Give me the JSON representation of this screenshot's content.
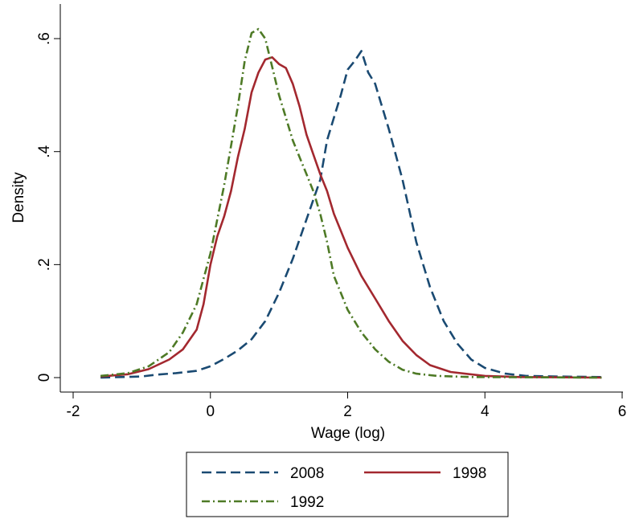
{
  "chart_data": {
    "type": "line",
    "xlabel": "Wage (log)",
    "ylabel": "Density",
    "xlim": [
      -2,
      6
    ],
    "ylim": [
      0,
      0.62
    ],
    "x_ticks": [
      {
        "value": -2,
        "label": "-2"
      },
      {
        "value": 0,
        "label": "0"
      },
      {
        "value": 2,
        "label": "2"
      },
      {
        "value": 4,
        "label": "4"
      },
      {
        "value": 6,
        "label": "6"
      }
    ],
    "y_ticks": [
      {
        "value": 0,
        "label": "0"
      },
      {
        "value": 0.2,
        "label": ".2"
      },
      {
        "value": 0.4,
        "label": ".4"
      },
      {
        "value": 0.6,
        "label": ".6"
      }
    ],
    "grid": false,
    "legend_position": "bottom",
    "series": [
      {
        "name": "2008",
        "color": "#1a4a72",
        "dash": "dashed",
        "points": [
          [
            -1.6,
            0.0
          ],
          [
            -1.3,
            0.001
          ],
          [
            -1.0,
            0.002
          ],
          [
            -0.8,
            0.005
          ],
          [
            -0.5,
            0.008
          ],
          [
            -0.2,
            0.012
          ],
          [
            0.0,
            0.02
          ],
          [
            0.2,
            0.033
          ],
          [
            0.4,
            0.048
          ],
          [
            0.6,
            0.068
          ],
          [
            0.8,
            0.1
          ],
          [
            1.0,
            0.15
          ],
          [
            1.2,
            0.21
          ],
          [
            1.4,
            0.28
          ],
          [
            1.6,
            0.35
          ],
          [
            1.7,
            0.42
          ],
          [
            1.8,
            0.46
          ],
          [
            1.9,
            0.5
          ],
          [
            2.0,
            0.545
          ],
          [
            2.1,
            0.56
          ],
          [
            2.2,
            0.578
          ],
          [
            2.3,
            0.54
          ],
          [
            2.4,
            0.52
          ],
          [
            2.5,
            0.48
          ],
          [
            2.6,
            0.44
          ],
          [
            2.8,
            0.35
          ],
          [
            3.0,
            0.24
          ],
          [
            3.2,
            0.16
          ],
          [
            3.4,
            0.1
          ],
          [
            3.6,
            0.06
          ],
          [
            3.8,
            0.032
          ],
          [
            4.0,
            0.017
          ],
          [
            4.3,
            0.007
          ],
          [
            4.6,
            0.003
          ],
          [
            5.0,
            0.002
          ],
          [
            5.7,
            0.001
          ]
        ]
      },
      {
        "name": "1998",
        "color": "#a3282f",
        "dash": "solid",
        "points": [
          [
            -1.6,
            0.002
          ],
          [
            -1.2,
            0.006
          ],
          [
            -0.9,
            0.015
          ],
          [
            -0.6,
            0.032
          ],
          [
            -0.4,
            0.05
          ],
          [
            -0.2,
            0.085
          ],
          [
            -0.1,
            0.13
          ],
          [
            0.0,
            0.2
          ],
          [
            0.1,
            0.25
          ],
          [
            0.2,
            0.285
          ],
          [
            0.3,
            0.33
          ],
          [
            0.4,
            0.39
          ],
          [
            0.5,
            0.44
          ],
          [
            0.6,
            0.505
          ],
          [
            0.7,
            0.54
          ],
          [
            0.8,
            0.563
          ],
          [
            0.9,
            0.567
          ],
          [
            1.0,
            0.555
          ],
          [
            1.1,
            0.548
          ],
          [
            1.2,
            0.52
          ],
          [
            1.3,
            0.48
          ],
          [
            1.4,
            0.43
          ],
          [
            1.5,
            0.395
          ],
          [
            1.6,
            0.36
          ],
          [
            1.7,
            0.33
          ],
          [
            1.8,
            0.29
          ],
          [
            1.9,
            0.26
          ],
          [
            2.0,
            0.23
          ],
          [
            2.2,
            0.18
          ],
          [
            2.4,
            0.14
          ],
          [
            2.6,
            0.1
          ],
          [
            2.8,
            0.065
          ],
          [
            3.0,
            0.04
          ],
          [
            3.2,
            0.022
          ],
          [
            3.5,
            0.01
          ],
          [
            4.0,
            0.003
          ],
          [
            4.5,
            0.001
          ],
          [
            5.7,
            0.0
          ]
        ]
      },
      {
        "name": "1992",
        "color": "#4e7a26",
        "dash": "dashdot",
        "points": [
          [
            -1.6,
            0.003
          ],
          [
            -1.2,
            0.008
          ],
          [
            -0.9,
            0.02
          ],
          [
            -0.6,
            0.045
          ],
          [
            -0.4,
            0.08
          ],
          [
            -0.2,
            0.13
          ],
          [
            0.0,
            0.22
          ],
          [
            0.1,
            0.28
          ],
          [
            0.2,
            0.34
          ],
          [
            0.3,
            0.41
          ],
          [
            0.4,
            0.48
          ],
          [
            0.5,
            0.56
          ],
          [
            0.6,
            0.61
          ],
          [
            0.7,
            0.617
          ],
          [
            0.8,
            0.6
          ],
          [
            0.9,
            0.55
          ],
          [
            1.0,
            0.5
          ],
          [
            1.1,
            0.46
          ],
          [
            1.2,
            0.42
          ],
          [
            1.3,
            0.39
          ],
          [
            1.4,
            0.36
          ],
          [
            1.5,
            0.33
          ],
          [
            1.6,
            0.29
          ],
          [
            1.7,
            0.24
          ],
          [
            1.8,
            0.18
          ],
          [
            1.9,
            0.15
          ],
          [
            2.0,
            0.12
          ],
          [
            2.2,
            0.08
          ],
          [
            2.4,
            0.05
          ],
          [
            2.6,
            0.028
          ],
          [
            2.8,
            0.014
          ],
          [
            3.0,
            0.007
          ],
          [
            3.3,
            0.003
          ],
          [
            3.8,
            0.001
          ],
          [
            5.7,
            0.0
          ]
        ]
      }
    ]
  }
}
